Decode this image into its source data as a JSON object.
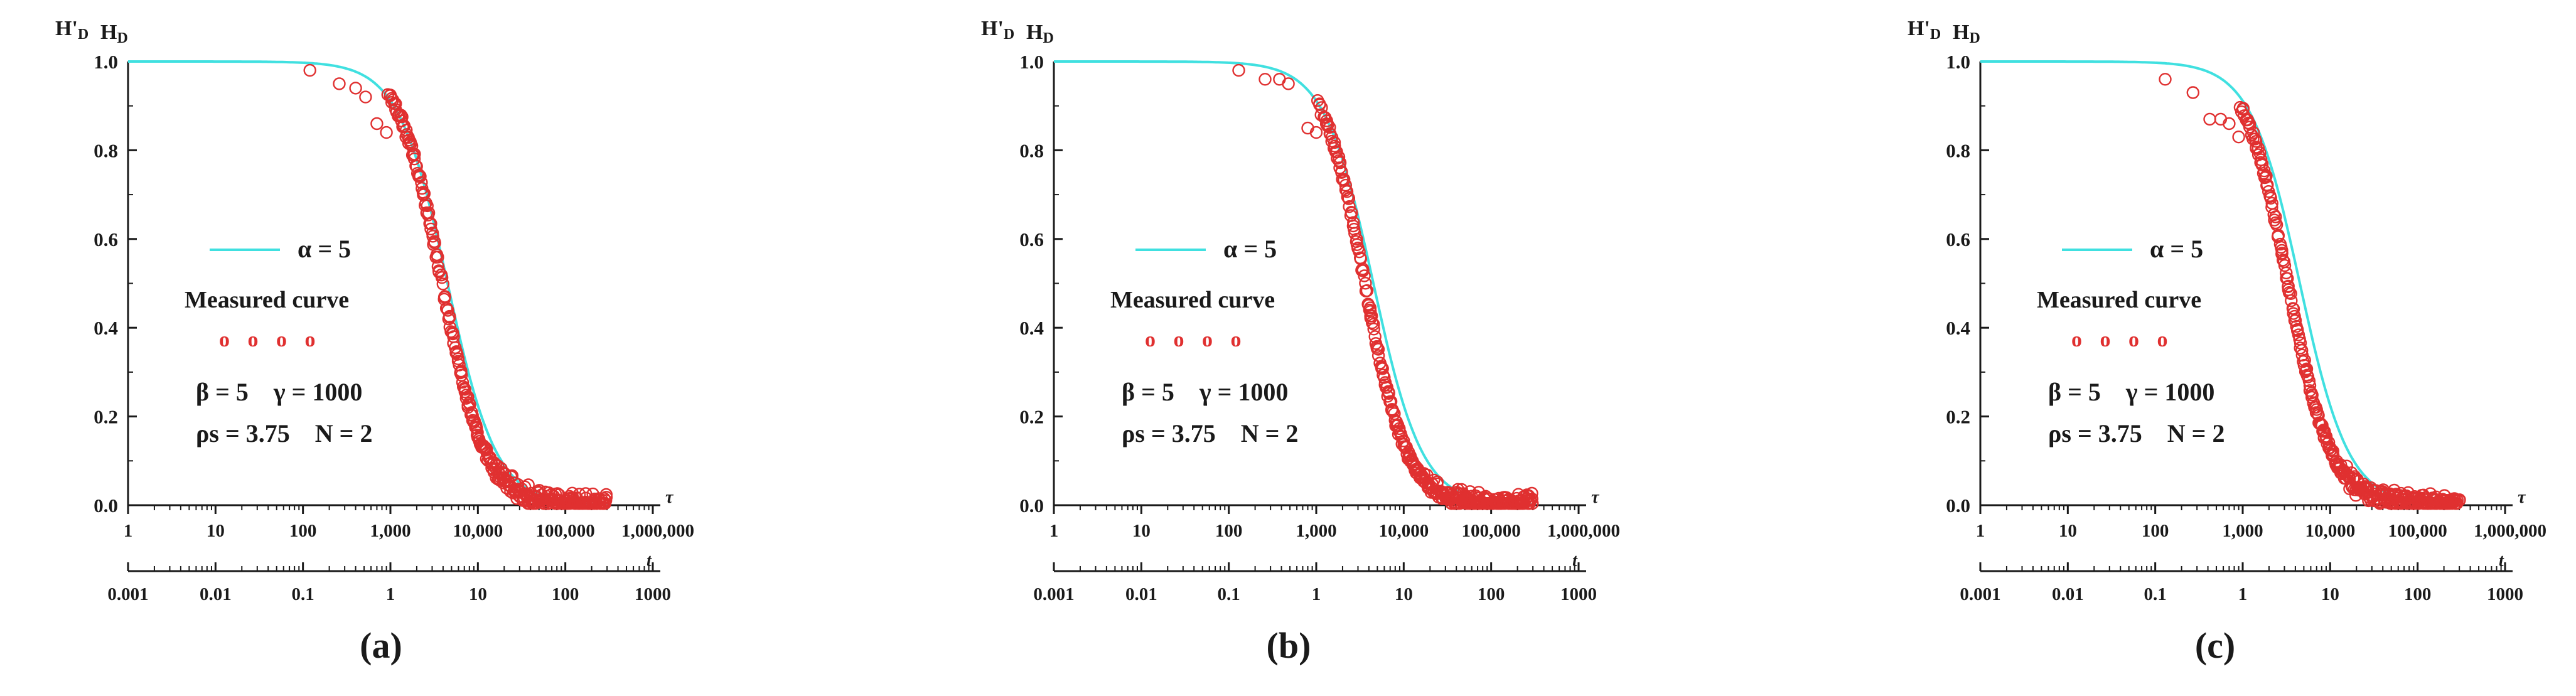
{
  "figure": {
    "panels": [
      {
        "label": "(a)",
        "label_text": "a"
      },
      {
        "label": "(b)",
        "label_text": "b"
      },
      {
        "label": "(c)",
        "label_text": "c"
      }
    ]
  },
  "chart_data": [
    {
      "type": "scatter",
      "panel": "a",
      "y_axis_labels": [
        "H'D",
        "HD"
      ],
      "y_ticks": [
        "0.0",
        "0.2",
        "0.4",
        "0.6",
        "0.8",
        "1.0"
      ],
      "ylim": [
        0,
        1.0
      ],
      "tau_axis": {
        "label": "τ",
        "scale": "log",
        "ticks": [
          "1",
          "10",
          "100",
          "1,000",
          "10,000",
          "100,000",
          "1,000,000"
        ],
        "range": [
          1,
          1000000
        ]
      },
      "t_axis": {
        "label": "t",
        "scale": "log",
        "ticks": [
          "0.001",
          "0.01",
          "0.1",
          "1",
          "10",
          "100",
          "1000"
        ],
        "range": [
          0.001,
          1000
        ]
      },
      "legend": {
        "curve_label": "α = 5",
        "measured_label": "Measured curve",
        "measured_marker": "o o o o"
      },
      "params": {
        "line1": "β = 5    γ = 1000",
        "line2": "ρs = 3.75    N = 2"
      },
      "colors": {
        "curve": "#40e0e0",
        "measured": "#e03030",
        "axis": "#1a1a1a"
      },
      "series": [
        {
          "name": "α = 5",
          "kind": "line",
          "tau_half": 4500,
          "steepness": 1.55
        },
        {
          "name": "Measured curve",
          "kind": "points",
          "tau_half": 3900,
          "steepness": 1.75,
          "tau_start": 120,
          "tau_end": 300000,
          "noise": 0.012,
          "seed": 3,
          "early_points": [
            [
              120,
              0.98
            ],
            [
              260,
              0.95
            ],
            [
              400,
              0.94
            ],
            [
              520,
              0.92
            ],
            [
              700,
              0.86
            ],
            [
              900,
              0.84
            ]
          ]
        }
      ]
    },
    {
      "type": "scatter",
      "panel": "b",
      "y_axis_labels": [
        "H'D",
        "HD"
      ],
      "y_ticks": [
        "0.0",
        "0.2",
        "0.4",
        "0.6",
        "0.8",
        "1.0"
      ],
      "ylim": [
        0,
        1.0
      ],
      "tau_axis": {
        "label": "τ",
        "scale": "log",
        "ticks": [
          "1",
          "10",
          "100",
          "1,000",
          "10,000",
          "100,000",
          "1,000,000"
        ],
        "range": [
          1,
          1000000
        ]
      },
      "t_axis": {
        "label": "t",
        "scale": "log",
        "ticks": [
          "0.001",
          "0.01",
          "0.1",
          "1",
          "10",
          "100",
          "1000"
        ],
        "range": [
          0.001,
          1000
        ]
      },
      "legend": {
        "curve_label": "α = 5",
        "measured_label": "Measured curve",
        "measured_marker": "o o o o"
      },
      "params": {
        "line1": "β = 5    γ = 1000",
        "line2": "ρs = 3.75    N = 2"
      },
      "colors": {
        "curve": "#40e0e0",
        "measured": "#e03030",
        "axis": "#1a1a1a"
      },
      "series": [
        {
          "name": "α = 5",
          "kind": "line",
          "tau_half": 4500,
          "steepness": 1.55
        },
        {
          "name": "Measured curve",
          "kind": "points",
          "tau_half": 3600,
          "steepness": 1.8,
          "tau_start": 130,
          "tau_end": 300000,
          "noise": 0.01,
          "seed": 7,
          "early_points": [
            [
              130,
              0.98
            ],
            [
              260,
              0.96
            ],
            [
              380,
              0.96
            ],
            [
              480,
              0.95
            ],
            [
              800,
              0.85
            ],
            [
              1000,
              0.84
            ]
          ]
        }
      ]
    },
    {
      "type": "scatter",
      "panel": "c",
      "y_axis_labels": [
        "H'D",
        "HD"
      ],
      "y_ticks": [
        "0.0",
        "0.2",
        "0.4",
        "0.6",
        "0.8",
        "1.0"
      ],
      "ylim": [
        0,
        1.0
      ],
      "tau_axis": {
        "label": "τ",
        "scale": "log",
        "ticks": [
          "1",
          "10",
          "100",
          "1,000",
          "10,000",
          "100,000",
          "1,000,000"
        ],
        "range": [
          1,
          1000000
        ]
      },
      "t_axis": {
        "label": "t",
        "scale": "log",
        "ticks": [
          "0.001",
          "0.01",
          "0.1",
          "1",
          "10",
          "100",
          "1000"
        ],
        "range": [
          0.001,
          1000
        ]
      },
      "legend": {
        "curve_label": "α = 5",
        "measured_label": "Measured curve",
        "measured_marker": "o o o o"
      },
      "params": {
        "line1": "β = 5    γ = 1000",
        "line2": "ρs = 3.75    N = 2"
      },
      "colors": {
        "curve": "#40e0e0",
        "measured": "#e03030",
        "axis": "#1a1a1a"
      },
      "series": [
        {
          "name": "α = 5",
          "kind": "line",
          "tau_half": 4500,
          "steepness": 1.55
        },
        {
          "name": "Measured curve",
          "kind": "points",
          "tau_half": 3300,
          "steepness": 1.75,
          "tau_start": 130,
          "tau_end": 300000,
          "noise": 0.01,
          "seed": 11,
          "early_points": [
            [
              130,
              0.96
            ],
            [
              270,
              0.93
            ],
            [
              420,
              0.87
            ],
            [
              560,
              0.87
            ],
            [
              700,
              0.86
            ],
            [
              900,
              0.83
            ]
          ]
        }
      ]
    }
  ]
}
